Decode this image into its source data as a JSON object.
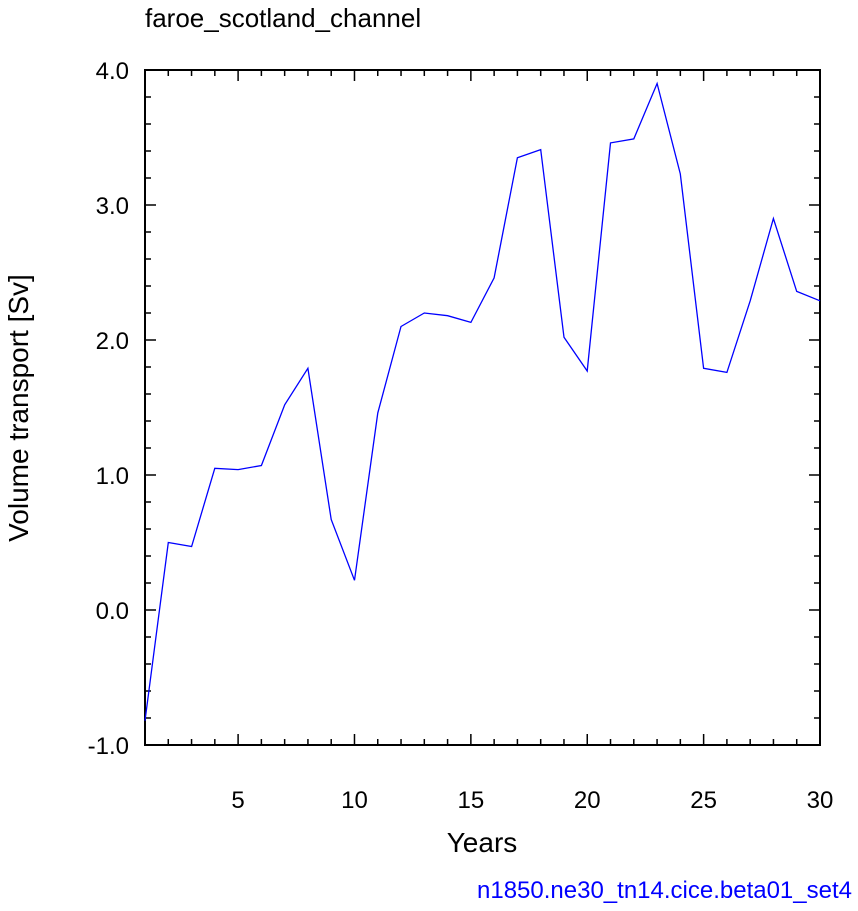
{
  "chart_data": {
    "type": "line",
    "title": "faroe_scotland_channel",
    "xlabel": "Years",
    "ylabel": "Volume transport [Sv]",
    "xlim": [
      1,
      30
    ],
    "ylim": [
      -1.0,
      4.0
    ],
    "xticks": [
      5,
      10,
      15,
      20,
      25,
      30
    ],
    "xtick_labels": [
      "5",
      "10",
      "15",
      "20",
      "25",
      "30"
    ],
    "yticks": [
      -1.0,
      0.0,
      1.0,
      2.0,
      3.0,
      4.0
    ],
    "ytick_labels": [
      "-1.0",
      "0.0",
      "1.0",
      "2.0",
      "3.0",
      "4.0"
    ],
    "grid": false,
    "series": [
      {
        "color": "#0000ff",
        "x": [
          1,
          2,
          3,
          4,
          5,
          6,
          7,
          8,
          9,
          10,
          11,
          12,
          13,
          14,
          15,
          16,
          17,
          18,
          19,
          20,
          21,
          22,
          23,
          24,
          25,
          26,
          27,
          28,
          29,
          30
        ],
        "values": [
          -0.82,
          0.5,
          0.47,
          1.05,
          1.04,
          1.07,
          1.52,
          1.79,
          0.67,
          0.22,
          1.46,
          2.1,
          2.2,
          2.18,
          2.13,
          2.46,
          3.35,
          3.41,
          2.02,
          1.77,
          3.46,
          3.49,
          3.9,
          3.23,
          1.79,
          1.76,
          2.29,
          2.9,
          2.36,
          2.29
        ]
      }
    ],
    "caption": "n1850.ne30_tn14.cice.beta01_set4",
    "caption_color": "#0000ff"
  }
}
